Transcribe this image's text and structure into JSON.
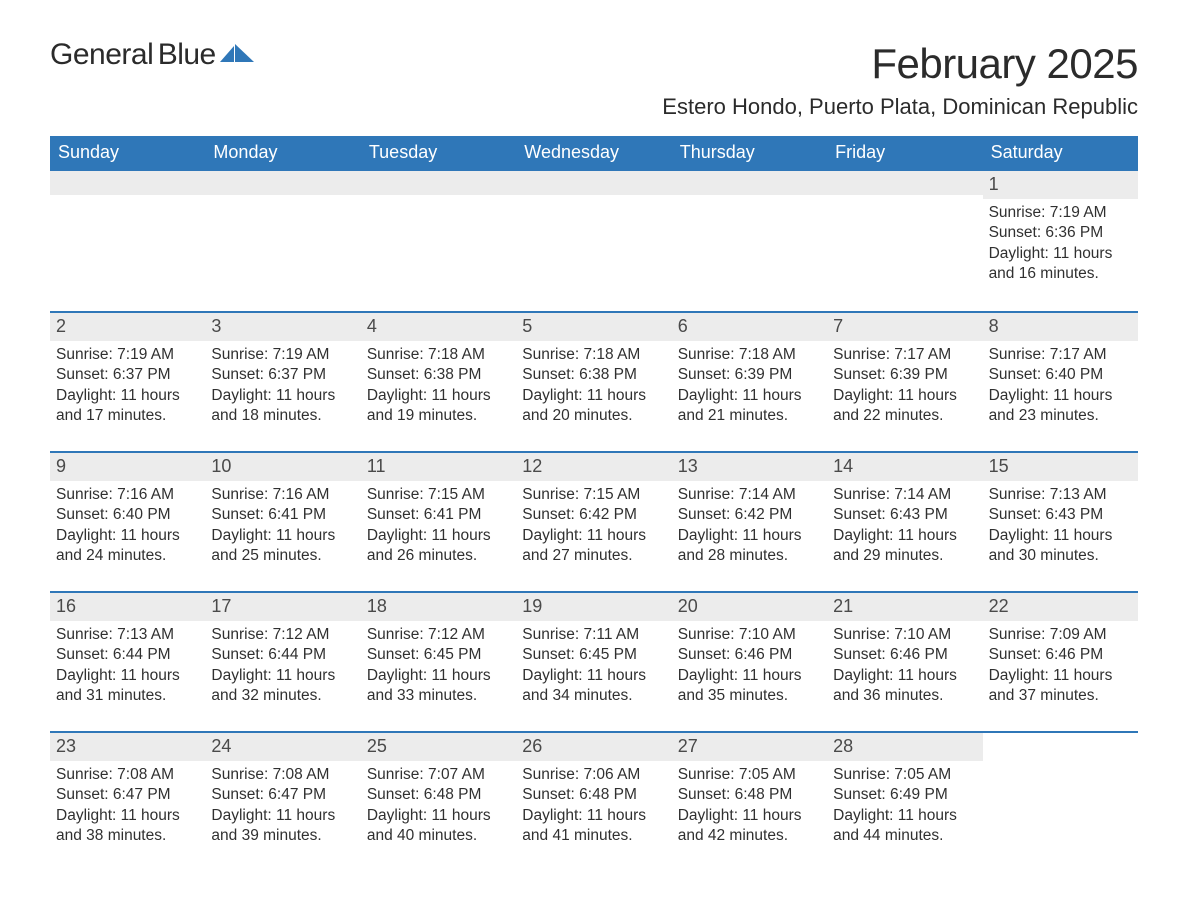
{
  "colors": {
    "header_bg": "#2f77b8",
    "header_text": "#ffffff",
    "grey_band": "#ececec",
    "blue_line": "#2f77b8",
    "text": "#303030",
    "title_text": "#2b2b2b",
    "logo_blue": "#2f77b8",
    "background": "#ffffff"
  },
  "typography": {
    "title_fontsize_pt": 32,
    "location_fontsize_pt": 17,
    "dow_fontsize_pt": 14,
    "cell_fontsize_pt": 12,
    "daynum_fontsize_pt": 14,
    "font_family": "Segoe UI"
  },
  "logo": {
    "word1": "General",
    "word2": "Blue"
  },
  "title": "February 2025",
  "location": "Estero Hondo, Puerto Plata, Dominican Republic",
  "dow": [
    "Sunday",
    "Monday",
    "Tuesday",
    "Wednesday",
    "Thursday",
    "Friday",
    "Saturday"
  ],
  "weeks": [
    [
      {
        "blank": true
      },
      {
        "blank": true
      },
      {
        "blank": true
      },
      {
        "blank": true
      },
      {
        "blank": true
      },
      {
        "blank": true
      },
      {
        "day": "1",
        "sunrise": "Sunrise: 7:19 AM",
        "sunset": "Sunset: 6:36 PM",
        "dl1": "Daylight: 11 hours",
        "dl2": "and 16 minutes."
      }
    ],
    [
      {
        "day": "2",
        "sunrise": "Sunrise: 7:19 AM",
        "sunset": "Sunset: 6:37 PM",
        "dl1": "Daylight: 11 hours",
        "dl2": "and 17 minutes."
      },
      {
        "day": "3",
        "sunrise": "Sunrise: 7:19 AM",
        "sunset": "Sunset: 6:37 PM",
        "dl1": "Daylight: 11 hours",
        "dl2": "and 18 minutes."
      },
      {
        "day": "4",
        "sunrise": "Sunrise: 7:18 AM",
        "sunset": "Sunset: 6:38 PM",
        "dl1": "Daylight: 11 hours",
        "dl2": "and 19 minutes."
      },
      {
        "day": "5",
        "sunrise": "Sunrise: 7:18 AM",
        "sunset": "Sunset: 6:38 PM",
        "dl1": "Daylight: 11 hours",
        "dl2": "and 20 minutes."
      },
      {
        "day": "6",
        "sunrise": "Sunrise: 7:18 AM",
        "sunset": "Sunset: 6:39 PM",
        "dl1": "Daylight: 11 hours",
        "dl2": "and 21 minutes."
      },
      {
        "day": "7",
        "sunrise": "Sunrise: 7:17 AM",
        "sunset": "Sunset: 6:39 PM",
        "dl1": "Daylight: 11 hours",
        "dl2": "and 22 minutes."
      },
      {
        "day": "8",
        "sunrise": "Sunrise: 7:17 AM",
        "sunset": "Sunset: 6:40 PM",
        "dl1": "Daylight: 11 hours",
        "dl2": "and 23 minutes."
      }
    ],
    [
      {
        "day": "9",
        "sunrise": "Sunrise: 7:16 AM",
        "sunset": "Sunset: 6:40 PM",
        "dl1": "Daylight: 11 hours",
        "dl2": "and 24 minutes."
      },
      {
        "day": "10",
        "sunrise": "Sunrise: 7:16 AM",
        "sunset": "Sunset: 6:41 PM",
        "dl1": "Daylight: 11 hours",
        "dl2": "and 25 minutes."
      },
      {
        "day": "11",
        "sunrise": "Sunrise: 7:15 AM",
        "sunset": "Sunset: 6:41 PM",
        "dl1": "Daylight: 11 hours",
        "dl2": "and 26 minutes."
      },
      {
        "day": "12",
        "sunrise": "Sunrise: 7:15 AM",
        "sunset": "Sunset: 6:42 PM",
        "dl1": "Daylight: 11 hours",
        "dl2": "and 27 minutes."
      },
      {
        "day": "13",
        "sunrise": "Sunrise: 7:14 AM",
        "sunset": "Sunset: 6:42 PM",
        "dl1": "Daylight: 11 hours",
        "dl2": "and 28 minutes."
      },
      {
        "day": "14",
        "sunrise": "Sunrise: 7:14 AM",
        "sunset": "Sunset: 6:43 PM",
        "dl1": "Daylight: 11 hours",
        "dl2": "and 29 minutes."
      },
      {
        "day": "15",
        "sunrise": "Sunrise: 7:13 AM",
        "sunset": "Sunset: 6:43 PM",
        "dl1": "Daylight: 11 hours",
        "dl2": "and 30 minutes."
      }
    ],
    [
      {
        "day": "16",
        "sunrise": "Sunrise: 7:13 AM",
        "sunset": "Sunset: 6:44 PM",
        "dl1": "Daylight: 11 hours",
        "dl2": "and 31 minutes."
      },
      {
        "day": "17",
        "sunrise": "Sunrise: 7:12 AM",
        "sunset": "Sunset: 6:44 PM",
        "dl1": "Daylight: 11 hours",
        "dl2": "and 32 minutes."
      },
      {
        "day": "18",
        "sunrise": "Sunrise: 7:12 AM",
        "sunset": "Sunset: 6:45 PM",
        "dl1": "Daylight: 11 hours",
        "dl2": "and 33 minutes."
      },
      {
        "day": "19",
        "sunrise": "Sunrise: 7:11 AM",
        "sunset": "Sunset: 6:45 PM",
        "dl1": "Daylight: 11 hours",
        "dl2": "and 34 minutes."
      },
      {
        "day": "20",
        "sunrise": "Sunrise: 7:10 AM",
        "sunset": "Sunset: 6:46 PM",
        "dl1": "Daylight: 11 hours",
        "dl2": "and 35 minutes."
      },
      {
        "day": "21",
        "sunrise": "Sunrise: 7:10 AM",
        "sunset": "Sunset: 6:46 PM",
        "dl1": "Daylight: 11 hours",
        "dl2": "and 36 minutes."
      },
      {
        "day": "22",
        "sunrise": "Sunrise: 7:09 AM",
        "sunset": "Sunset: 6:46 PM",
        "dl1": "Daylight: 11 hours",
        "dl2": "and 37 minutes."
      }
    ],
    [
      {
        "day": "23",
        "sunrise": "Sunrise: 7:08 AM",
        "sunset": "Sunset: 6:47 PM",
        "dl1": "Daylight: 11 hours",
        "dl2": "and 38 minutes."
      },
      {
        "day": "24",
        "sunrise": "Sunrise: 7:08 AM",
        "sunset": "Sunset: 6:47 PM",
        "dl1": "Daylight: 11 hours",
        "dl2": "and 39 minutes."
      },
      {
        "day": "25",
        "sunrise": "Sunrise: 7:07 AM",
        "sunset": "Sunset: 6:48 PM",
        "dl1": "Daylight: 11 hours",
        "dl2": "and 40 minutes."
      },
      {
        "day": "26",
        "sunrise": "Sunrise: 7:06 AM",
        "sunset": "Sunset: 6:48 PM",
        "dl1": "Daylight: 11 hours",
        "dl2": "and 41 minutes."
      },
      {
        "day": "27",
        "sunrise": "Sunrise: 7:05 AM",
        "sunset": "Sunset: 6:48 PM",
        "dl1": "Daylight: 11 hours",
        "dl2": "and 42 minutes."
      },
      {
        "day": "28",
        "sunrise": "Sunrise: 7:05 AM",
        "sunset": "Sunset: 6:49 PM",
        "dl1": "Daylight: 11 hours",
        "dl2": "and 44 minutes."
      },
      {
        "blank": true,
        "noBand": true
      }
    ]
  ]
}
